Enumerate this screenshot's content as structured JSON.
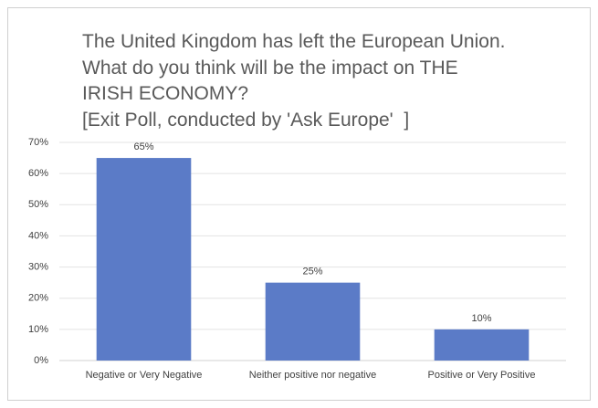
{
  "chart_data": {
    "type": "bar",
    "title": "The United Kingdom has left the European Union. What do you think will be the impact on THE IRISH ECONOMY?",
    "subtitle": "[Exit Poll, conducted by 'Ask Europe'  ]",
    "categories": [
      "Negative  or Very Negative",
      "Neither  positive  nor negative",
      "Positive  or Very Positive"
    ],
    "values": [
      65,
      25,
      10
    ],
    "value_labels": [
      "65%",
      "25%",
      "10%"
    ],
    "color": "#5b7bc7",
    "ylim": [
      0,
      70
    ],
    "yticks": [
      {
        "value": 0,
        "label": "0%"
      },
      {
        "value": 10,
        "label": "10%"
      },
      {
        "value": 20,
        "label": "20%"
      },
      {
        "value": 30,
        "label": "30%"
      },
      {
        "value": 40,
        "label": "40%"
      },
      {
        "value": 50,
        "label": "50%"
      },
      {
        "value": 60,
        "label": "60%"
      },
      {
        "value": 70,
        "label": "70%"
      }
    ],
    "grid": true
  }
}
